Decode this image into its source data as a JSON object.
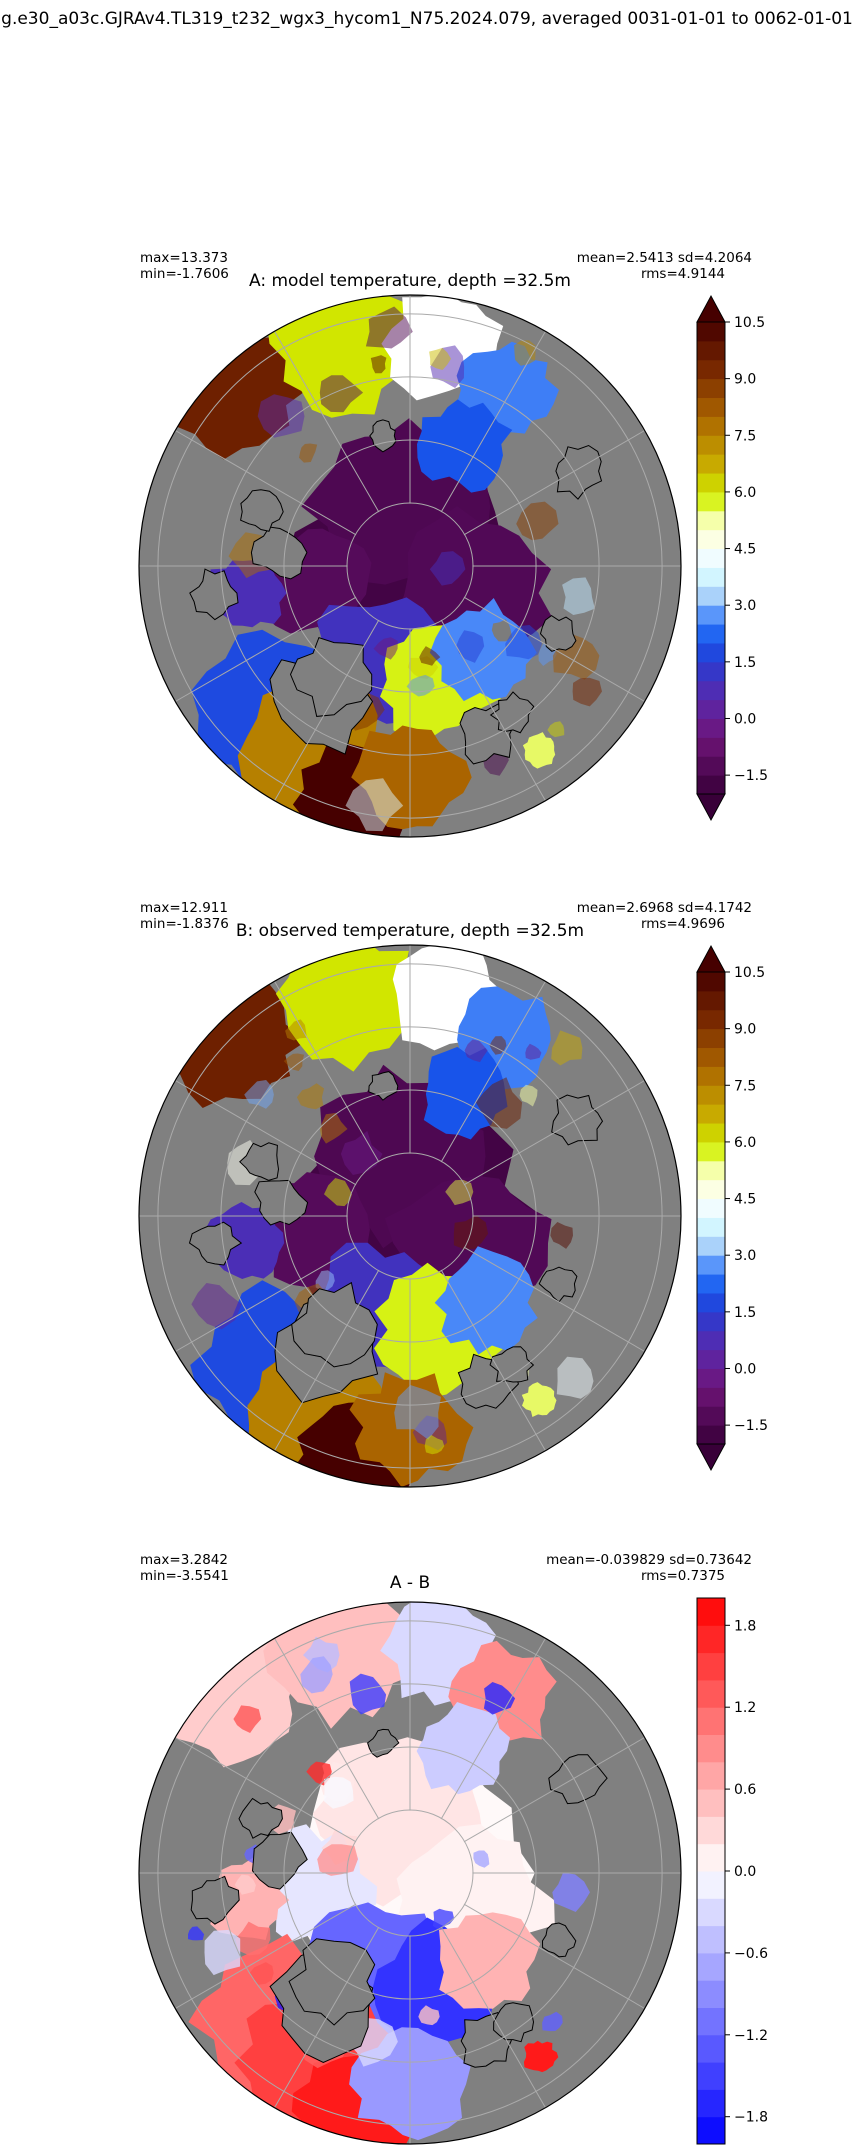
{
  "suptitle": "g.e30_a03c.GJRAv4.TL319_t232_wgx3_hycom1_N75.2024.079, averaged 0031-01-01 to 0062-01-01",
  "chart_data": [
    {
      "type": "heatmap",
      "projection": "north-polar-stereographic",
      "title": "A: model temperature, depth =32.5m",
      "stats_left": [
        "max=13.373",
        "min=-1.7606"
      ],
      "stats_right": [
        "mean=2.5413 sd=4.2064",
        "rms=4.9144"
      ],
      "colorbar": {
        "colormap": "dunne_pm",
        "range": [
          -2.0,
          10.5
        ],
        "extend": "both",
        "ticks": [
          -1.5,
          0.0,
          1.5,
          3.0,
          4.5,
          6.0,
          7.5,
          9.0,
          10.5
        ],
        "tick_labels": [
          "−1.5",
          "0.0",
          "1.5",
          "3.0",
          "4.5",
          "6.0",
          "7.5",
          "9.0",
          "10.5"
        ]
      },
      "land_color": "#808080"
    },
    {
      "type": "heatmap",
      "projection": "north-polar-stereographic",
      "title": "B: observed temperature, depth =32.5m",
      "stats_left": [
        "max=12.911",
        "min=-1.8376"
      ],
      "stats_right": [
        "mean=2.6968 sd=4.1742",
        "rms=4.9696"
      ],
      "colorbar": {
        "colormap": "dunne_pm",
        "range": [
          -2.0,
          10.5
        ],
        "extend": "both",
        "ticks": [
          -1.5,
          0.0,
          1.5,
          3.0,
          4.5,
          6.0,
          7.5,
          9.0,
          10.5
        ],
        "tick_labels": [
          "−1.5",
          "0.0",
          "1.5",
          "3.0",
          "4.5",
          "6.0",
          "7.5",
          "9.0",
          "10.5"
        ]
      },
      "land_color": "#808080"
    },
    {
      "type": "heatmap",
      "projection": "north-polar-stereographic",
      "title": "A - B",
      "stats_left": [
        "max=3.2842",
        "min=-3.5541"
      ],
      "stats_right": [
        "mean=-0.039829 sd=0.73642",
        "rms=0.7375"
      ],
      "colorbar": {
        "colormap": "bwr",
        "range": [
          -2.0,
          2.0
        ],
        "extend": "neither",
        "ticks": [
          -1.8,
          -1.2,
          -0.6,
          0.0,
          0.6,
          1.2,
          1.8
        ],
        "tick_labels": [
          "−1.8",
          "−1.2",
          "−0.6",
          "0.0",
          "0.6",
          "1.2",
          "1.8"
        ]
      },
      "land_color": "#808080"
    }
  ]
}
